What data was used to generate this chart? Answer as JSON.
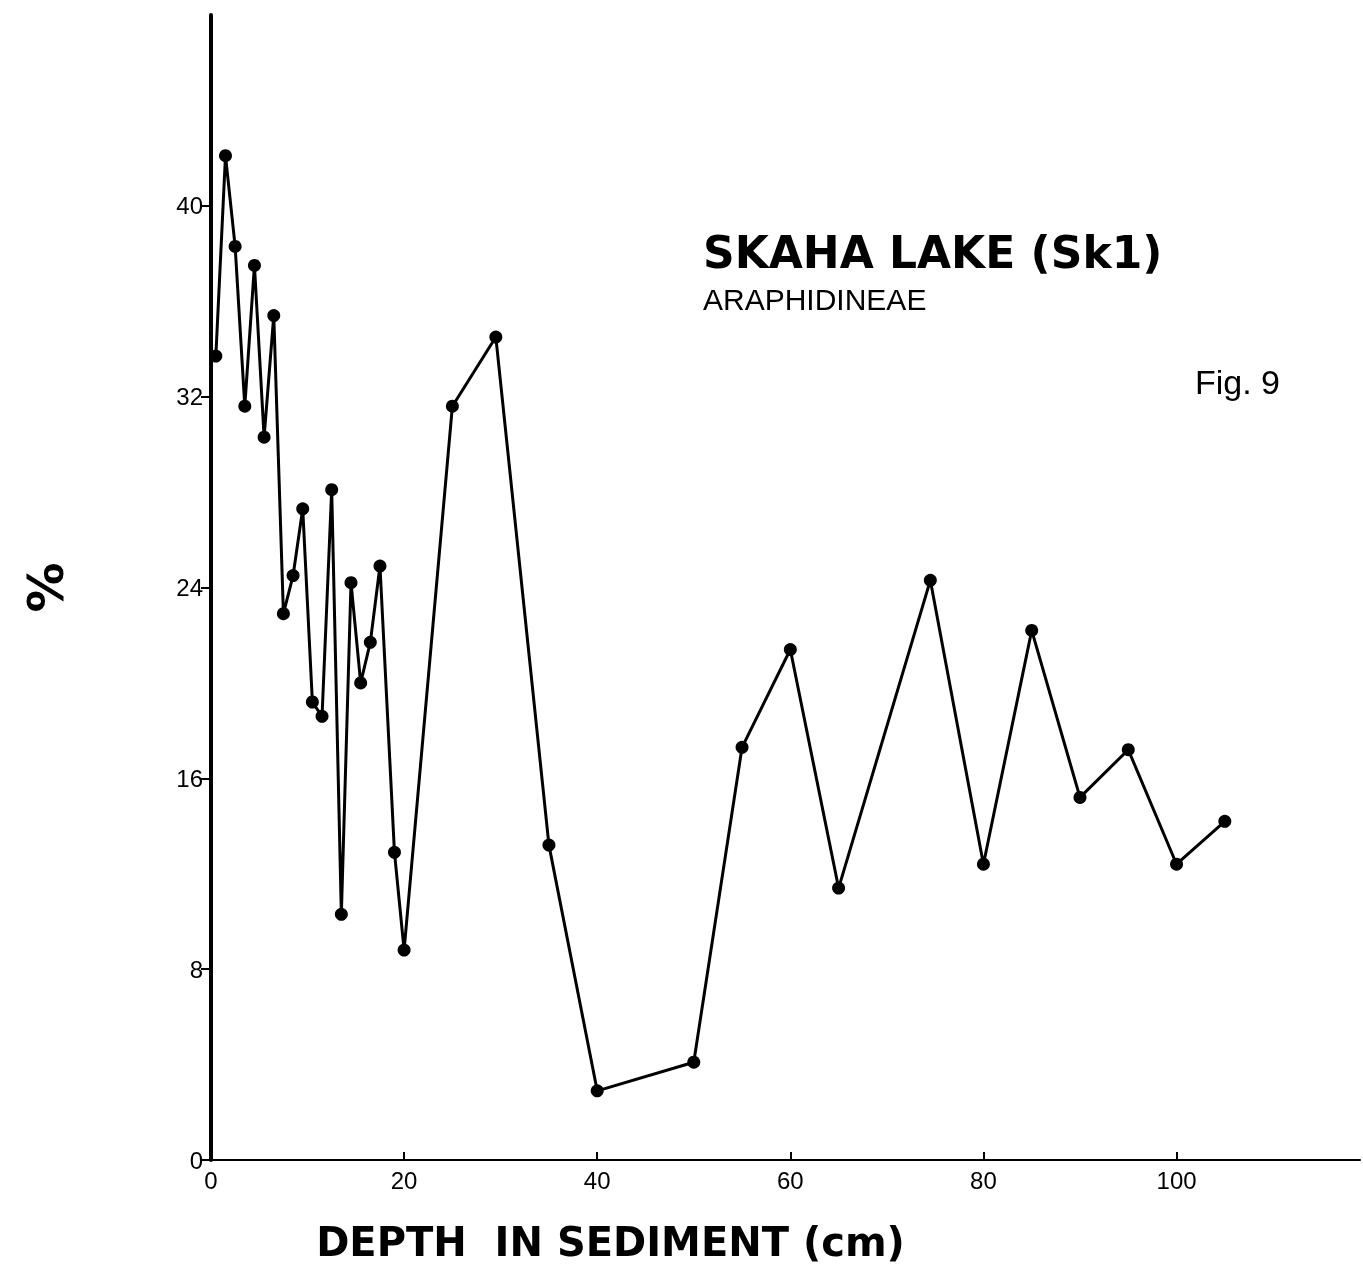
{
  "chart_data": {
    "type": "line",
    "title": "SKAHA LAKE (Sk1)",
    "subtitle": "ARAPHIDINEAE",
    "annotations": [
      "Fig. 9"
    ],
    "xlabel": "DEPTH  IN SEDIMENT (cm)",
    "ylabel": "%",
    "x": [
      0.5,
      1.5,
      2.5,
      3.5,
      4.5,
      5.5,
      6.5,
      7.5,
      8.5,
      9.5,
      10.5,
      11.5,
      12.5,
      13.5,
      14.5,
      15.5,
      16.5,
      17.5,
      19,
      20,
      25,
      29.5,
      35,
      40,
      50,
      55,
      60,
      65,
      74.5,
      80,
      85,
      90,
      95,
      100,
      105
    ],
    "series": [
      {
        "color": "#000000",
        "values": [
          33.7,
          42.1,
          38.3,
          31.6,
          37.5,
          30.3,
          35.4,
          22.9,
          24.5,
          27.3,
          19.2,
          18.6,
          28.1,
          10.3,
          24.2,
          20.0,
          21.7,
          24.9,
          12.9,
          8.8,
          31.6,
          34.5,
          13.2,
          2.9,
          4.1,
          17.3,
          21.4,
          11.4,
          24.3,
          12.4,
          22.2,
          15.2,
          17.2,
          12.4,
          14.2
        ]
      }
    ],
    "xlim": [
      0,
      119
    ],
    "xticks": [
      0,
      20,
      40,
      60,
      80,
      100
    ],
    "ylim": [
      0,
      48
    ],
    "yticks": [
      0,
      8,
      16,
      24,
      32,
      40
    ],
    "marker": "circle",
    "line_style": "solid"
  }
}
